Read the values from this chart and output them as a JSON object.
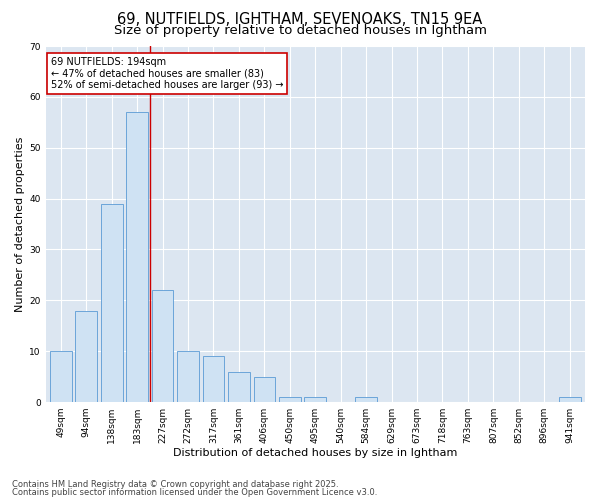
{
  "title1": "69, NUTFIELDS, IGHTHAM, SEVENOAKS, TN15 9EA",
  "title2": "Size of property relative to detached houses in Ightham",
  "xlabel": "Distribution of detached houses by size in Ightham",
  "ylabel": "Number of detached properties",
  "categories": [
    "49sqm",
    "94sqm",
    "138sqm",
    "183sqm",
    "227sqm",
    "272sqm",
    "317sqm",
    "361sqm",
    "406sqm",
    "450sqm",
    "495sqm",
    "540sqm",
    "584sqm",
    "629sqm",
    "673sqm",
    "718sqm",
    "763sqm",
    "807sqm",
    "852sqm",
    "896sqm",
    "941sqm"
  ],
  "values": [
    10,
    18,
    39,
    57,
    22,
    10,
    9,
    6,
    5,
    1,
    1,
    0,
    1,
    0,
    0,
    0,
    0,
    0,
    0,
    0,
    1
  ],
  "bar_color": "#cfe2f3",
  "bar_edge_color": "#5b9bd5",
  "vline_x": 3.5,
  "vline_color": "#cc0000",
  "annotation_text": "69 NUTFIELDS: 194sqm\n← 47% of detached houses are smaller (83)\n52% of semi-detached houses are larger (93) →",
  "annotation_box_color": "#ffffff",
  "annotation_box_edge": "#cc0000",
  "ylim": [
    0,
    70
  ],
  "yticks": [
    0,
    10,
    20,
    30,
    40,
    50,
    60,
    70
  ],
  "footer1": "Contains HM Land Registry data © Crown copyright and database right 2025.",
  "footer2": "Contains public sector information licensed under the Open Government Licence v3.0.",
  "bg_color": "#ffffff",
  "plot_bg_color": "#dce6f1",
  "grid_color": "#ffffff",
  "title_fontsize": 10.5,
  "subtitle_fontsize": 9.5,
  "label_fontsize": 8,
  "tick_fontsize": 6.5,
  "annot_fontsize": 7,
  "footer_fontsize": 6
}
